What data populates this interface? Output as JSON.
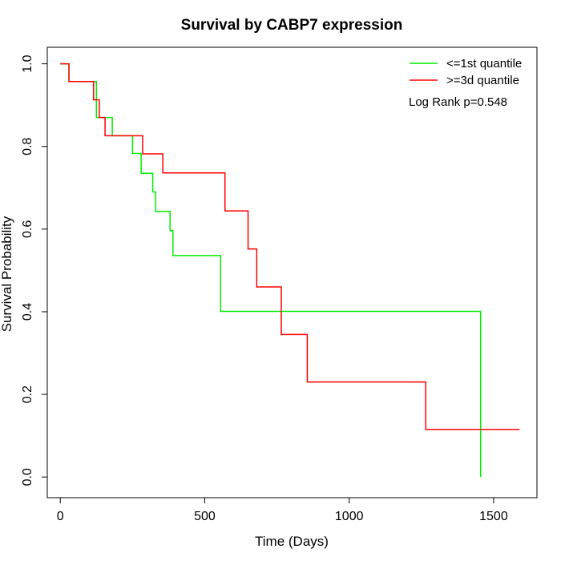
{
  "chart_data": {
    "type": "line",
    "title": "Survival by CABP7 expression",
    "xlabel": "Time (Days)",
    "ylabel": "Survival Probability",
    "xlim": [
      -45,
      1650
    ],
    "ylim": [
      -0.05,
      1.04
    ],
    "x_ticks": [
      0,
      500,
      1000,
      1500
    ],
    "y_ticks": [
      0.0,
      0.2,
      0.4,
      0.6,
      0.8,
      1.0
    ],
    "x_tick_labels": [
      "0",
      "500",
      "1000",
      "1500"
    ],
    "y_tick_labels": [
      "0.0",
      "0.2",
      "0.4",
      "0.6",
      "0.8",
      "1.0"
    ],
    "grid": false,
    "legend_position": "top-right",
    "annotation": "Log Rank p=0.548",
    "series": [
      {
        "name": "<=1st quantile",
        "color": "#00ee00",
        "step": true,
        "x": [
          0,
          30,
          125,
          140,
          180,
          250,
          280,
          320,
          330,
          380,
          390,
          555,
          1455,
          1455
        ],
        "y": [
          1.0,
          0.957,
          0.87,
          0.87,
          0.826,
          0.783,
          0.735,
          0.69,
          0.643,
          0.596,
          0.536,
          0.401,
          0.401,
          0.0
        ]
      },
      {
        "name": ">=3d quantile",
        "color": "#ff0000",
        "step": true,
        "x": [
          0,
          30,
          115,
          135,
          155,
          285,
          355,
          570,
          650,
          680,
          765,
          855,
          1265,
          1590
        ],
        "y": [
          1.0,
          0.957,
          0.913,
          0.87,
          0.826,
          0.782,
          0.736,
          0.644,
          0.552,
          0.46,
          0.345,
          0.23,
          0.115,
          0.115
        ]
      }
    ]
  }
}
